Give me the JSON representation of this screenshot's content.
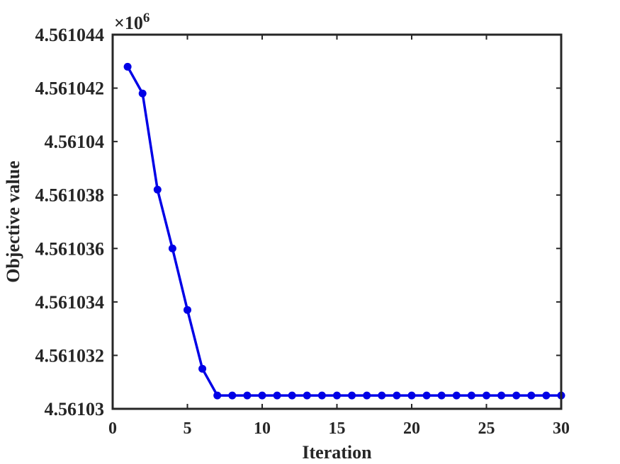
{
  "chart_data": {
    "type": "line",
    "title": "",
    "xlabel": "Iteration",
    "ylabel": "Objective value",
    "exponent_label": "×10",
    "exponent_power": "6",
    "xlim": [
      0,
      30
    ],
    "ylim": [
      4.56103,
      4.561044
    ],
    "xticks": [
      0,
      5,
      10,
      15,
      20,
      25,
      30
    ],
    "xtick_labels": [
      "0",
      "5",
      "10",
      "15",
      "20",
      "25",
      "30"
    ],
    "yticks": [
      4.56103,
      4.561032,
      4.561034,
      4.561036,
      4.561038,
      4.56104,
      4.561042,
      4.561044
    ],
    "ytick_labels": [
      "4.56103",
      "4.561032",
      "4.561034",
      "4.561036",
      "4.561038",
      "4.56104",
      "4.561042",
      "4.561044"
    ],
    "grid": false,
    "legend": "none",
    "line_color": "#0000e6",
    "series": [
      {
        "x": [
          1,
          2,
          3,
          4,
          5,
          6,
          7,
          8,
          9,
          10,
          11,
          12,
          13,
          14,
          15,
          16,
          17,
          18,
          19,
          20,
          21,
          22,
          23,
          24,
          25,
          26,
          27,
          28,
          29,
          30
        ],
        "y": [
          4.5610428,
          4.5610418,
          4.5610382,
          4.561036,
          4.5610337,
          4.5610315,
          4.5610305,
          4.5610305,
          4.5610305,
          4.5610305,
          4.5610305,
          4.5610305,
          4.5610305,
          4.5610305,
          4.5610305,
          4.5610305,
          4.5610305,
          4.5610305,
          4.5610305,
          4.5610305,
          4.5610305,
          4.5610305,
          4.5610305,
          4.5610305,
          4.5610305,
          4.5610305,
          4.5610305,
          4.5610305,
          4.5610305,
          4.5610305
        ]
      }
    ]
  }
}
